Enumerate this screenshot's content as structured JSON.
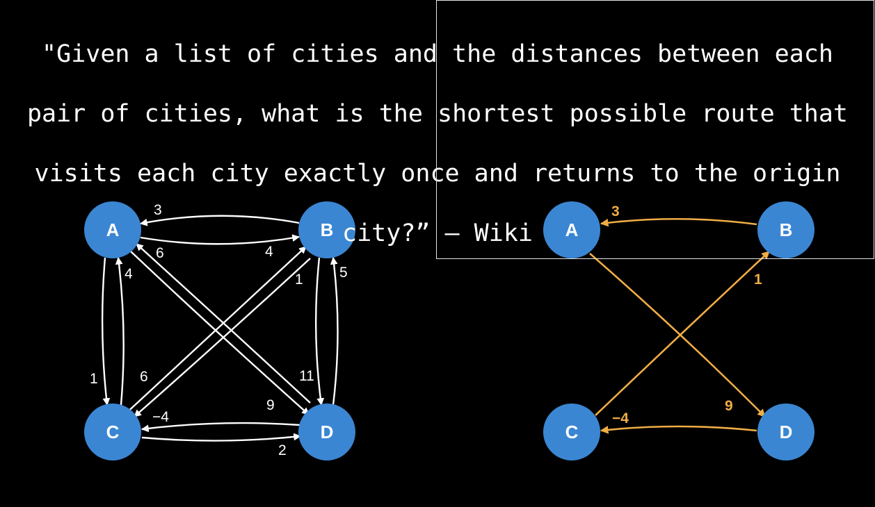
{
  "quote": {
    "lines": [
      "\"Given a list of cities and the distances between each",
      "pair of cities, what is the shortest possible route that",
      "visits each city exactly once and returns to the origin",
      "city?” – Wiki"
    ]
  },
  "colors": {
    "node": "#3b86d3",
    "edge_full": "#ffffff",
    "edge_tour": "#f0ad45",
    "background": "#000000"
  },
  "left_graph": {
    "nodes": [
      "A",
      "B",
      "C",
      "D"
    ],
    "edges": [
      {
        "from": "B",
        "to": "A",
        "weight": "3"
      },
      {
        "from": "A",
        "to": "B",
        "weight": "4"
      },
      {
        "from": "D",
        "to": "A",
        "weight": "6"
      },
      {
        "from": "A",
        "to": "D",
        "weight": "9"
      },
      {
        "from": "C",
        "to": "A",
        "weight": "4"
      },
      {
        "from": "A",
        "to": "C",
        "weight": "1"
      },
      {
        "from": "C",
        "to": "B",
        "weight": "1"
      },
      {
        "from": "B",
        "to": "C",
        "weight": "6"
      },
      {
        "from": "D",
        "to": "B",
        "weight": "5"
      },
      {
        "from": "B",
        "to": "D",
        "weight": "11"
      },
      {
        "from": "D",
        "to": "C",
        "weight": "−4"
      },
      {
        "from": "C",
        "to": "D",
        "weight": "2"
      }
    ]
  },
  "right_graph": {
    "nodes": [
      "A",
      "B",
      "C",
      "D"
    ],
    "edges": [
      {
        "from": "B",
        "to": "A",
        "weight": "3"
      },
      {
        "from": "C",
        "to": "B",
        "weight": "1"
      },
      {
        "from": "A",
        "to": "D",
        "weight": "9"
      },
      {
        "from": "D",
        "to": "C",
        "weight": "−4"
      }
    ]
  }
}
